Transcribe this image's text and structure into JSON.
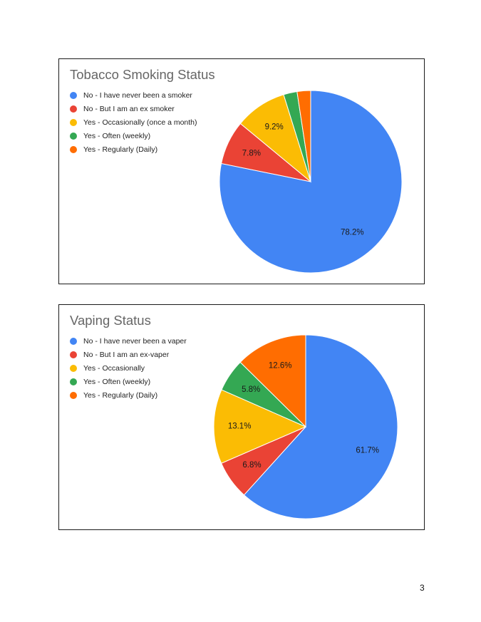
{
  "page_number": "3",
  "chart_data": [
    {
      "type": "pie",
      "title": "Tobacco Smoking Status",
      "legend_position": "top-left",
      "start_angle_deg": 0,
      "direction": "clockwise",
      "slices": [
        {
          "label": "No - I have never been a smoker",
          "value": 78.2,
          "display": "78.2%",
          "color": "#4285f4"
        },
        {
          "label": "No - But I am an ex smoker",
          "value": 7.8,
          "display": "7.8%",
          "color": "#ea4335"
        },
        {
          "label": "Yes - Occasionally (once a month)",
          "value": 9.2,
          "display": "9.2%",
          "color": "#fbbc04"
        },
        {
          "label": "Yes - Often (weekly)",
          "value": 2.4,
          "display": "",
          "color": "#34a853"
        },
        {
          "label": "Yes - Regularly (Daily)",
          "value": 2.4,
          "display": "",
          "color": "#ff6d01"
        }
      ]
    },
    {
      "type": "pie",
      "title": "Vaping Status",
      "legend_position": "top-left",
      "start_angle_deg": 0,
      "direction": "clockwise",
      "slices": [
        {
          "label": "No - I have never been a vaper",
          "value": 61.7,
          "display": "61.7%",
          "color": "#4285f4"
        },
        {
          "label": "No - But I am an ex-vaper",
          "value": 6.8,
          "display": "6.8%",
          "color": "#ea4335"
        },
        {
          "label": "Yes - Occasionally",
          "value": 13.1,
          "display": "13.1%",
          "color": "#fbbc04"
        },
        {
          "label": "Yes - Often (weekly)",
          "value": 5.8,
          "display": "5.8%",
          "color": "#34a853"
        },
        {
          "label": "Yes - Regularly (Daily)",
          "value": 12.6,
          "display": "12.6%",
          "color": "#ff6d01"
        }
      ]
    }
  ]
}
